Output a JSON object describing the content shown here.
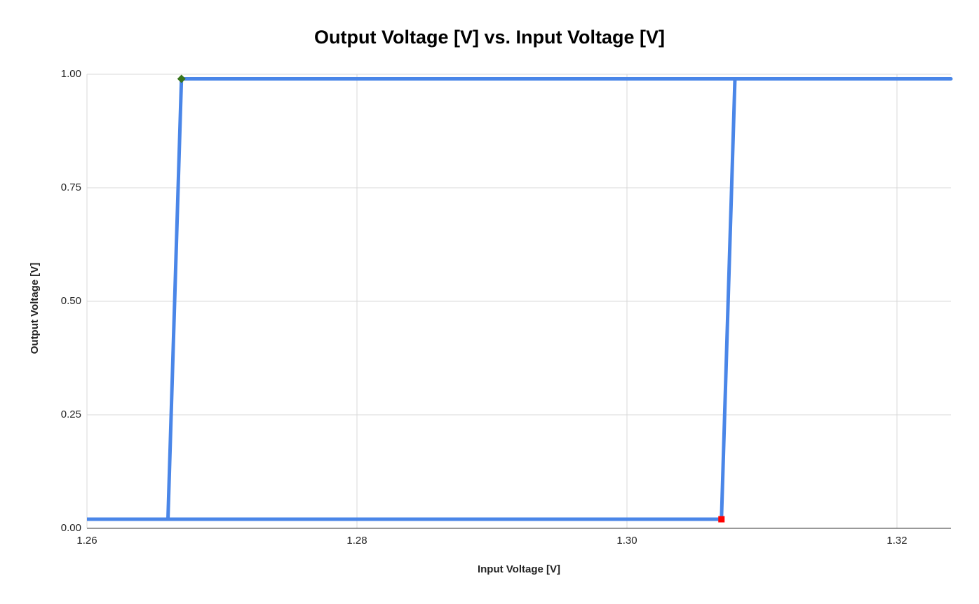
{
  "chart_data": {
    "type": "line",
    "title": "Output Voltage [V] vs. Input Voltage [V]",
    "x_label": "Input Voltage [V]",
    "y_label": "Output Voltage [V]",
    "xlim": [
      1.26,
      1.324
    ],
    "ylim": [
      0,
      1
    ],
    "xticks": [
      1.26,
      1.28,
      {
        "value": 1.3,
        "label": "1.30"
      },
      1.32
    ],
    "yticks": [
      {
        "value": 0,
        "label": "0.00"
      },
      {
        "value": 0.25,
        "label": "0.25"
      },
      {
        "value": 0.5,
        "label": "0.50"
      },
      {
        "value": 0.75,
        "label": "0.75"
      },
      {
        "value": 1,
        "label": "1.00"
      }
    ],
    "grid": true,
    "series": [
      {
        "color": "#4a86e8",
        "x": [
          1.26,
          1.307,
          1.308,
          1.324,
          1.267,
          1.266,
          1.26
        ],
        "values": [
          0.02,
          0.02,
          0.99,
          0.99,
          0.99,
          0.02,
          0.02
        ]
      },
      {
        "color": "#38761d",
        "marker": "diamond",
        "x": [
          1.267
        ],
        "values": [
          0.99
        ]
      },
      {
        "color": "#ff0000",
        "marker": "square",
        "x": [
          1.307
        ],
        "values": [
          0.02
        ]
      }
    ]
  }
}
